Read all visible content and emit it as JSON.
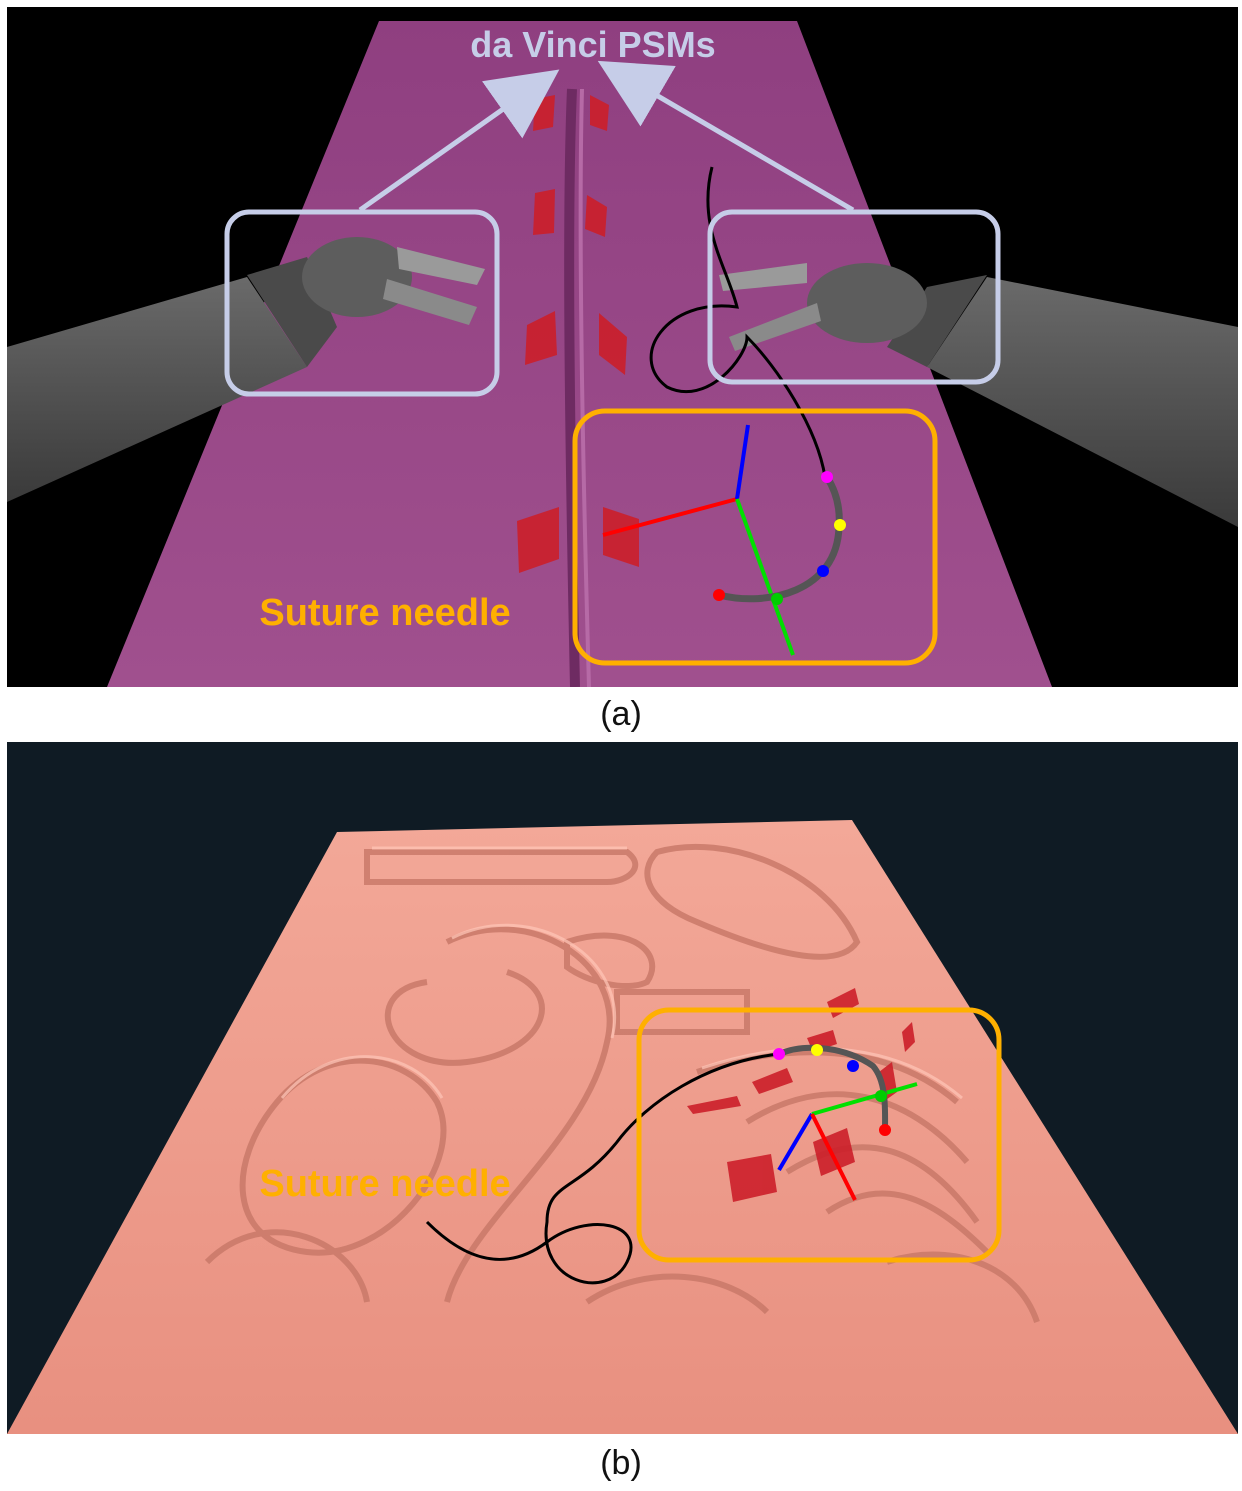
{
  "panel_a": {
    "caption": "(a)",
    "psm_label": "da Vinci PSMs",
    "needle_label": "Suture needle",
    "colors": {
      "background": "#000000",
      "tissue": "#9a4a8a",
      "psm_box": "#c6cde8",
      "needle_box": "#ffb000",
      "instrument": "#555555"
    }
  },
  "panel_b": {
    "caption": "(b)",
    "needle_label": "Suture needle",
    "colors": {
      "background": "#0f1b24",
      "tissue": "#ee9c8c",
      "needle_box": "#ffb000"
    }
  },
  "needle_frame_colors": {
    "x_axis": "#ff0000",
    "y_axis": "#00e000",
    "z_axis": "#0000ff"
  },
  "keypoint_colors": [
    "#ff00ff",
    "#ffff00",
    "#0000ff",
    "#00cc00",
    "#ff0000"
  ]
}
